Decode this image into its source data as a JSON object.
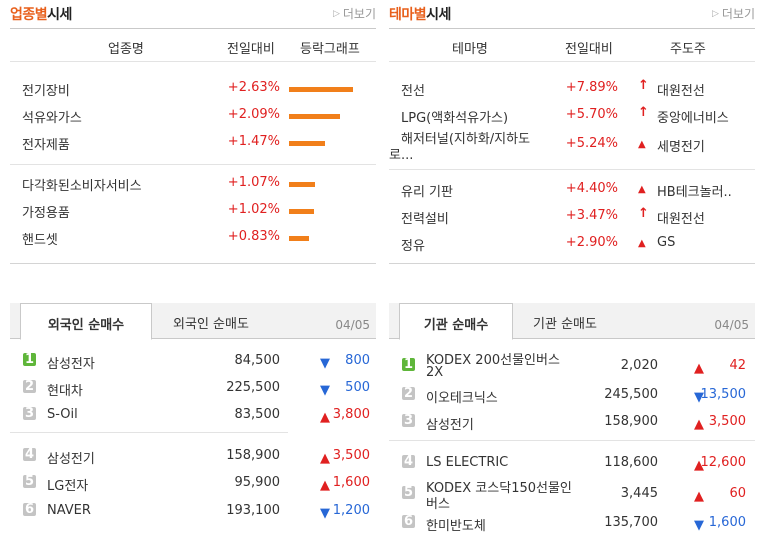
{
  "sector": {
    "title_accent": "업종별",
    "title_rest": "시세",
    "more": "더보기",
    "headers": [
      "업종명",
      "전일대비",
      "등락그래프"
    ],
    "rows": [
      {
        "name": "전기장비",
        "change": "+2.63%",
        "pct": 2.63
      },
      {
        "name": "석유와가스",
        "change": "+2.09%",
        "pct": 2.09
      },
      {
        "name": "전자제품",
        "change": "+1.47%",
        "pct": 1.47
      },
      {
        "name": "다각화된소비자서비스",
        "change": "+1.07%",
        "pct": 1.07
      },
      {
        "name": "가정용품",
        "change": "+1.02%",
        "pct": 1.02
      },
      {
        "name": "핸드셋",
        "change": "+0.83%",
        "pct": 0.83
      }
    ],
    "bar_color": "#f17f1a"
  },
  "theme": {
    "title_accent": "테마별",
    "title_rest": "시세",
    "more": "더보기",
    "headers": [
      "테마명",
      "전일대비",
      "주도주"
    ],
    "rows": [
      {
        "name": "전선",
        "name2": "",
        "change": "+7.89%",
        "icon": "up-arrow-icon",
        "leader": "대원전선"
      },
      {
        "name": "LPG(액화석유가스)",
        "name2": "",
        "change": "+5.70%",
        "icon": "up-arrow-icon",
        "leader": "중앙에너비스"
      },
      {
        "name": "해저터널(지하화/지하도",
        "name2": "로...",
        "change": "+5.24%",
        "icon": "up-triangle-icon",
        "leader": "세명전기"
      },
      {
        "name": "유리 기판",
        "name2": "",
        "change": "+4.40%",
        "icon": "up-triangle-icon",
        "leader": "HB테크놀러.."
      },
      {
        "name": "전력설비",
        "name2": "",
        "change": "+3.47%",
        "icon": "up-arrow-icon",
        "leader": "대원전선"
      },
      {
        "name": "정유",
        "name2": "",
        "change": "+2.90%",
        "icon": "up-triangle-icon",
        "leader": "GS"
      }
    ]
  },
  "foreign": {
    "tab_active": "외국인 순매수",
    "tab_inactive": "외국인 순매도",
    "date": "04/05",
    "rows": [
      {
        "rank": "1",
        "name": "삼성전자",
        "name2": "",
        "price": "84,500",
        "dir": "down",
        "net": "800"
      },
      {
        "rank": "2",
        "name": "현대차",
        "name2": "",
        "price": "225,500",
        "dir": "down",
        "net": "500"
      },
      {
        "rank": "3",
        "name": "S-Oil",
        "name2": "",
        "price": "83,500",
        "dir": "up",
        "net": "3,800"
      },
      {
        "rank": "4",
        "name": "삼성전기",
        "name2": "",
        "price": "158,900",
        "dir": "up",
        "net": "3,500"
      },
      {
        "rank": "5",
        "name": "LG전자",
        "name2": "",
        "price": "95,900",
        "dir": "up",
        "net": "1,600"
      },
      {
        "rank": "6",
        "name": "NAVER",
        "name2": "",
        "price": "193,100",
        "dir": "down",
        "net": "1,200"
      }
    ]
  },
  "institution": {
    "tab_active": "기관 순매수",
    "tab_inactive": "기관 순매도",
    "date": "04/05",
    "rows": [
      {
        "rank": "1",
        "name": "KODEX 200선물인버스",
        "name2": "2X",
        "price": "2,020",
        "dir": "up",
        "net": "42"
      },
      {
        "rank": "2",
        "name": "이오테크닉스",
        "name2": "",
        "price": "245,500",
        "dir": "down",
        "net": "13,500"
      },
      {
        "rank": "3",
        "name": "삼성전기",
        "name2": "",
        "price": "158,900",
        "dir": "up",
        "net": "3,500"
      },
      {
        "rank": "4",
        "name": "LS ELECTRIC",
        "name2": "",
        "price": "118,600",
        "dir": "up",
        "net": "12,600"
      },
      {
        "rank": "5",
        "name": "KODEX 코스닥150선물인",
        "name2": "버스",
        "price": "3,445",
        "dir": "up",
        "net": "60"
      },
      {
        "rank": "6",
        "name": "한미반도체",
        "name2": "",
        "price": "135,700",
        "dir": "down",
        "net": "1,600"
      }
    ]
  }
}
